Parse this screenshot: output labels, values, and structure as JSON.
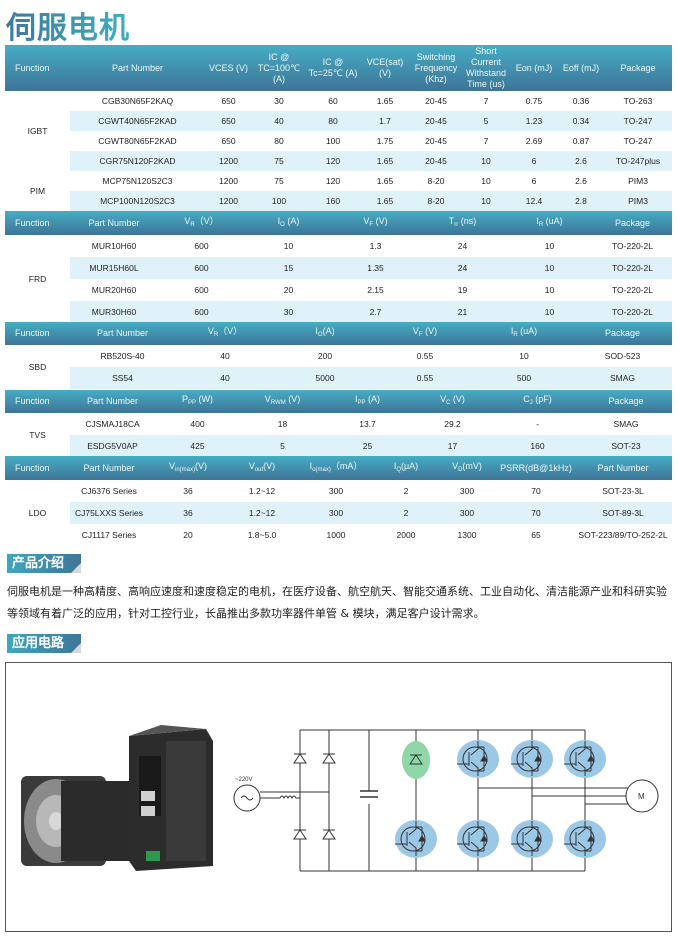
{
  "title": "伺服电机",
  "colors": {
    "header_top": "#46adc4",
    "header_bottom": "#3e7497",
    "alt_row": "#e0f2f9",
    "brake_highlight": "#8fd6a8",
    "igbt_highlight": "#9cc8e8"
  },
  "tables": [
    {
      "id": "igbt",
      "headers": [
        {
          "m": "Function"
        },
        {
          "m": "Part Number"
        },
        {
          "m": "VCES (V)"
        },
        {
          "m": "IC @ TC=100℃ (A)"
        },
        {
          "m": "IC @ Tc=25℃ (A)"
        },
        {
          "m": "VCE(sat) (V)"
        },
        {
          "m": "Switching Frequency (Khz)"
        },
        {
          "m": "Short Current Withstand Time (us)"
        },
        {
          "m": "Eon (mJ)"
        },
        {
          "m": "Eoff (mJ)"
        },
        {
          "m": "Package"
        }
      ],
      "groups": [
        {
          "fn": "IGBT",
          "rows": [
            [
              "CGB30N65F2KAQ",
              "650",
              "30",
              "60",
              "1.65",
              "20-45",
              "7",
              "0.75",
              "0.36",
              "TO-263"
            ],
            [
              "CGWT40N65F2KAD",
              "650",
              "40",
              "80",
              "1.7",
              "20-45",
              "5",
              "1.23",
              "0.34",
              "TO-247"
            ],
            [
              "CGWT80N65F2KAD",
              "650",
              "80",
              "100",
              "1.75",
              "20-45",
              "7",
              "2.69",
              "0.87",
              "TO-247"
            ],
            [
              "CGR75N120F2KAD",
              "1200",
              "75",
              "120",
              "1.65",
              "20-45",
              "10",
              "6",
              "2.6",
              "TO-247plus"
            ]
          ]
        },
        {
          "fn": "PIM",
          "rows": [
            [
              "MCP75N120S2C3",
              "1200",
              "75",
              "120",
              "1.65",
              "8-20",
              "10",
              "6",
              "2.6",
              "PIM3"
            ],
            [
              "MCP100N120S2C3",
              "1200",
              "100",
              "160",
              "1.65",
              "8-20",
              "10",
              "12.4",
              "2.8",
              "PIM3"
            ]
          ]
        }
      ]
    },
    {
      "id": "frd",
      "headers": [
        {
          "m": "Function"
        },
        {
          "m": "Part Number"
        },
        {
          "m": "V",
          "s": "R",
          "u": "（V）"
        },
        {
          "m": "I",
          "s": "O",
          "u": " (A)"
        },
        {
          "m": "V",
          "s": "F",
          "u": " (V)"
        },
        {
          "m": "T",
          "s": "rr",
          "u": " (ns)"
        },
        {
          "m": "I",
          "s": "R",
          "u": " (uA)"
        },
        {
          "m": "Package"
        }
      ],
      "groups": [
        {
          "fn": "FRD",
          "rows": [
            [
              "MUR10H60",
              "600",
              "10",
              "1.3",
              "24",
              "10",
              "TO-220-2L"
            ],
            [
              "MUR15H60L",
              "600",
              "15",
              "1.35",
              "24",
              "10",
              "TO-220-2L"
            ],
            [
              "MUR20H60",
              "600",
              "20",
              "2.15",
              "19",
              "10",
              "TO-220-2L"
            ],
            [
              "MUR30H60",
              "600",
              "30",
              "2.7",
              "21",
              "10",
              "TO-220-2L"
            ]
          ]
        }
      ]
    },
    {
      "id": "sbd",
      "headers": [
        {
          "m": "Function"
        },
        {
          "m": "Part Number"
        },
        {
          "m": "V",
          "s": "R",
          "u": "（V）"
        },
        {
          "m": "I",
          "s": "O",
          "u": "(A)"
        },
        {
          "m": "V",
          "s": "F",
          "u": " (V)"
        },
        {
          "m": "I",
          "s": "R",
          "u": " (uA)"
        },
        {
          "m": "Package"
        }
      ],
      "groups": [
        {
          "fn": "SBD",
          "rows": [
            [
              "RB520S-40",
              "40",
              "200",
              "0.55",
              "10",
              "SOD-523"
            ],
            [
              "SS54",
              "40",
              "5000",
              "0.55",
              "500",
              "SMAG"
            ]
          ]
        }
      ]
    },
    {
      "id": "tvs",
      "headers": [
        {
          "m": "Function"
        },
        {
          "m": "Part  Number"
        },
        {
          "m": "P",
          "s": "PP",
          "u": "  (W)"
        },
        {
          "m": "V",
          "s": "RWM",
          "u": "  (V)"
        },
        {
          "m": "I",
          "s": "PP",
          "u": " (A)"
        },
        {
          "m": "V",
          "s": "C",
          "u": "  (V)"
        },
        {
          "m": "C",
          "s": "J",
          "u": "  (pF)"
        },
        {
          "m": "Package"
        }
      ],
      "groups": [
        {
          "fn": "TVS",
          "rows": [
            [
              "CJSMAJ18CA",
              "400",
              "18",
              "13.7",
              "29.2",
              "-",
              "SMAG"
            ],
            [
              "ESDG5V0AP",
              "425",
              "5",
              "25",
              "17",
              "160",
              "SOT-23"
            ]
          ]
        }
      ]
    },
    {
      "id": "ldo",
      "headers": [
        {
          "m": "Function"
        },
        {
          "m": "Part Number"
        },
        {
          "m": "V",
          "s": "in(max)",
          "u": "(V)"
        },
        {
          "m": "V",
          "s": "out",
          "u": "(V)"
        },
        {
          "m": "I",
          "s": "o(max)",
          "u": "（mA）"
        },
        {
          "m": "I",
          "s": "Q",
          "u": "(μA)"
        },
        {
          "m": "V",
          "s": "D",
          "u": "(mV)"
        },
        {
          "m": "PSRR(dB@1kHz)"
        },
        {
          "m": "Part Number"
        }
      ],
      "groups": [
        {
          "fn": "LDO",
          "rows": [
            [
              "CJ6376 Series",
              "36",
              "1.2~12",
              "300",
              "2",
              "300",
              "70",
              "SOT-23-3L"
            ],
            [
              "CJ75LXXS Series",
              "36",
              "1.2~12",
              "300",
              "2",
              "300",
              "70",
              "SOT-89-3L"
            ],
            [
              "CJ1117 Series",
              "20",
              "1.8~5.0",
              "1000",
              "2000",
              "1300",
              "65",
              "SOT-223/89/TO-252-2L"
            ]
          ]
        }
      ]
    }
  ],
  "intro": {
    "heading": "产品介绍",
    "text": "伺服电机是一种高精度、高响应速度和速度稳定的电机，在医疗设备、航空航天、智能交通系统、工业自动化、清洁能源产业和科研实验等领域有着广泛的应用，针对工控行业，长晶推出多款功率器件单管 & 模块，满足客户设计需求。"
  },
  "circuit": {
    "heading": "应用电路",
    "source_label": "~220V",
    "motor_label": "M"
  }
}
